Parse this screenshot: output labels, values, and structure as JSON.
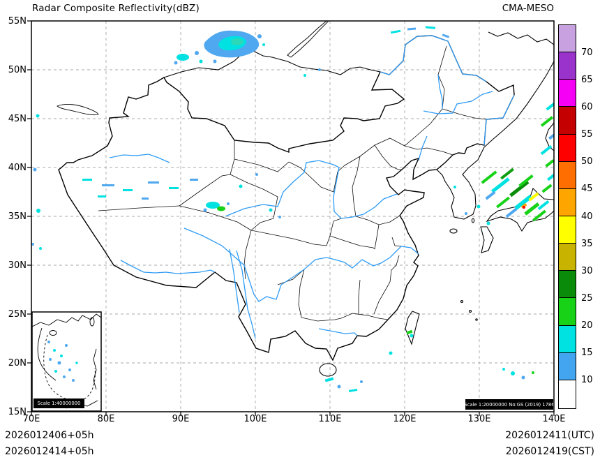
{
  "header": {
    "title": "Radar Composite Reflectivity(dBZ)",
    "model_name": "CMA-MESO"
  },
  "axes": {
    "lon_ticks": [
      "70E",
      "80E",
      "90E",
      "100E",
      "110E",
      "120E",
      "130E",
      "140E"
    ],
    "lat_ticks": [
      "55N",
      "50N",
      "45N",
      "40N",
      "35N",
      "30N",
      "25N",
      "20N",
      "15N"
    ]
  },
  "colorbar": {
    "unit": "dBZ",
    "levels": [
      "70",
      "65",
      "60",
      "55",
      "50",
      "45",
      "40",
      "35",
      "30",
      "25",
      "20",
      "15",
      "10"
    ],
    "colors_top_to_bottom": [
      "#C8A2E0",
      "#9933CC",
      "#F500F5",
      "#C40000",
      "#FF0000",
      "#FF6E00",
      "#FFA500",
      "#FFFF00",
      "#C8B400",
      "#0A8C0A",
      "#17D217",
      "#00E1E1",
      "#43A5F0",
      "#FFFFFF"
    ]
  },
  "scale_labels": {
    "inset": "Scale 1:40000000",
    "main": "Scale 1:20000000 No:GS (2019) 1786"
  },
  "footer": {
    "left_line1": "2026012406+05h",
    "left_line2": "2026012414+05h",
    "right_line1": "2026012411(UTC)",
    "right_line2": "2026012419(CST)"
  }
}
